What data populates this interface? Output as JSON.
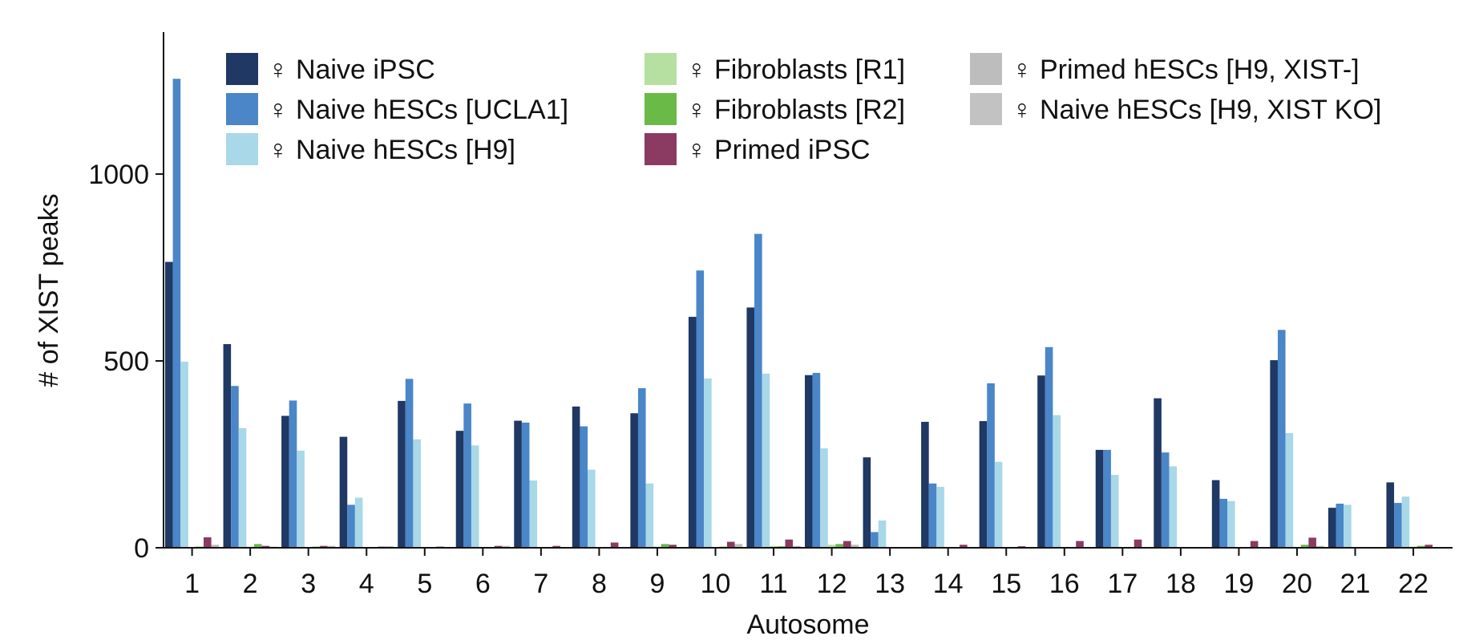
{
  "chart_data": {
    "type": "bar",
    "title": "",
    "xlabel": "Autosome",
    "ylabel": "# of XIST peaks",
    "ylim": [
      0,
      1380
    ],
    "yticks": [
      0,
      500,
      1000
    ],
    "grid": false,
    "legend_position": "top",
    "categories": [
      "1",
      "2",
      "3",
      "4",
      "5",
      "6",
      "7",
      "8",
      "9",
      "10",
      "11",
      "12",
      "13",
      "14",
      "15",
      "16",
      "17",
      "18",
      "19",
      "20",
      "21",
      "22"
    ],
    "series": [
      {
        "name": "♀ Naive iPSC",
        "color": "#1f3864",
        "values": [
          765,
          545,
          353,
          297,
          393,
          313,
          340,
          378,
          360,
          618,
          643,
          462,
          242,
          337,
          339,
          461,
          262,
          400,
          181,
          502,
          107,
          175
        ]
      },
      {
        "name": "♀ Naive hESCs [UCLA1]",
        "color": "#4a86c8",
        "values": [
          1255,
          433,
          394,
          115,
          452,
          386,
          335,
          325,
          427,
          742,
          840,
          468,
          42,
          172,
          440,
          537,
          262,
          255,
          131,
          583,
          118,
          120
        ]
      },
      {
        "name": "♀ Naive hESCs [H9]",
        "color": "#a9d8e8",
        "values": [
          498,
          320,
          260,
          134,
          290,
          274,
          180,
          209,
          172,
          453,
          466,
          266,
          73,
          163,
          230,
          355,
          195,
          218,
          125,
          307,
          115,
          137
        ]
      },
      {
        "name": "♀ Fibroblasts [R1]",
        "color": "#b6e0a2",
        "values": [
          2,
          3,
          2,
          1,
          1,
          1,
          1,
          1,
          3,
          2,
          5,
          8,
          1,
          1,
          1,
          1,
          1,
          1,
          1,
          2,
          1,
          3
        ]
      },
      {
        "name": "♀ Fibroblasts [R2]",
        "color": "#6aba48",
        "values": [
          3,
          10,
          3,
          2,
          2,
          2,
          2,
          2,
          10,
          3,
          4,
          10,
          2,
          2,
          2,
          2,
          2,
          2,
          2,
          8,
          2,
          5
        ]
      },
      {
        "name": "♀ Primed iPSC",
        "color": "#8b3a62",
        "values": [
          28,
          5,
          5,
          3,
          3,
          5,
          5,
          14,
          8,
          16,
          22,
          18,
          1,
          8,
          4,
          18,
          22,
          2,
          18,
          27,
          1,
          8
        ]
      },
      {
        "name": "♀ Primed hESCs [H9, XIST-]",
        "color": "#bdbdbd",
        "values": [
          8,
          3,
          5,
          4,
          2,
          5,
          2,
          2,
          2,
          10,
          5,
          8,
          1,
          2,
          2,
          2,
          2,
          2,
          2,
          5,
          1,
          2
        ]
      },
      {
        "name": "♀ Naive hESCs [H9, XIST KO]",
        "color": "#c2c2c2",
        "values": [
          2,
          1,
          1,
          1,
          1,
          1,
          1,
          1,
          1,
          2,
          1,
          2,
          1,
          1,
          1,
          1,
          1,
          1,
          1,
          2,
          1,
          1
        ]
      }
    ]
  }
}
